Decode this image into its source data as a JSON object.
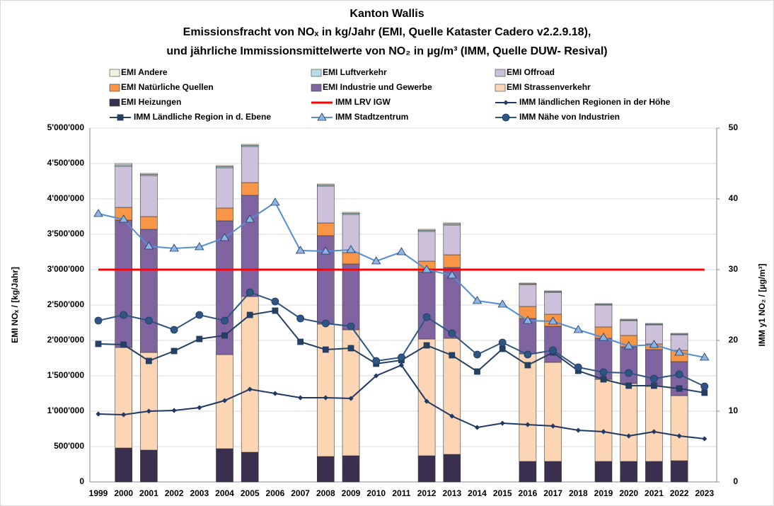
{
  "chart_data": {
    "type": "combo",
    "title": [
      "Kanton Wallis",
      "Emissionsfracht von NOₓ in kg/Jahr (EMI, Quelle Kataster Cadero v2.2.9.18),",
      "und jährliche Immissionsmittelwerte von NO₂ in µg/m³ (IMM, Quelle DUW- Resival)"
    ],
    "y_label": "EMI NOₓ / [kg/Jahr]",
    "y2_label": "IMM y1 NO₂ / [µg/m³]",
    "categories": [
      "1999",
      "2000",
      "2001",
      "2002",
      "2003",
      "2004",
      "2005",
      "2006",
      "2007",
      "2008",
      "2009",
      "2010",
      "2011",
      "2012",
      "2013",
      "2014",
      "2015",
      "2016",
      "2017",
      "2018",
      "2019",
      "2020",
      "2021",
      "2022",
      "2023"
    ],
    "ylim": [
      0,
      5000000
    ],
    "yticks": [
      0,
      {
        "value": 500000,
        "label": "500'000"
      },
      {
        "value": 1000000,
        "label": "1'000'000"
      },
      {
        "value": 1500000,
        "label": "1'500'000"
      },
      {
        "value": 2000000,
        "label": "2'000'000"
      },
      {
        "value": 2500000,
        "label": "2'500'000"
      },
      {
        "value": 3000000,
        "label": "3'000'000"
      },
      {
        "value": 3500000,
        "label": "3'500'000"
      },
      {
        "value": 4000000,
        "label": "4'000'000"
      },
      {
        "value": 4500000,
        "label": "4'500'000"
      },
      {
        "value": 5000000,
        "label": "5'000'000"
      }
    ],
    "y2lim": [
      0,
      50
    ],
    "y2ticks": [
      0,
      10,
      20,
      30,
      40,
      50
    ],
    "grid": true,
    "series": [
      {
        "name": "EMI Andere",
        "kind": "bar",
        "color": "#f4f1de",
        "values": [
          null,
          20000,
          15000,
          null,
          null,
          15000,
          15000,
          null,
          null,
          15000,
          15000,
          null,
          null,
          15000,
          15000,
          null,
          null,
          10000,
          10000,
          null,
          10000,
          10000,
          10000,
          10000,
          null
        ]
      },
      {
        "name": "EMI Luftverkehr",
        "kind": "bar",
        "color": "#b7dee8",
        "values": [
          null,
          20000,
          15000,
          null,
          null,
          15000,
          15000,
          null,
          null,
          15000,
          15000,
          null,
          null,
          15000,
          15000,
          null,
          null,
          10000,
          10000,
          null,
          10000,
          10000,
          10000,
          10000,
          null
        ]
      },
      {
        "name": "EMI Offroad",
        "kind": "bar",
        "color": "#ccc0da",
        "values": [
          null,
          580000,
          580000,
          null,
          null,
          570000,
          510000,
          null,
          null,
          520000,
          540000,
          null,
          null,
          420000,
          420000,
          null,
          null,
          310000,
          310000,
          null,
          310000,
          210000,
          270000,
          220000,
          null
        ]
      },
      {
        "name": "EMI Natürliche Quellen",
        "kind": "bar",
        "color": "#f79646",
        "values": [
          null,
          180000,
          180000,
          null,
          null,
          180000,
          180000,
          null,
          null,
          180000,
          160000,
          null,
          null,
          150000,
          180000,
          null,
          null,
          170000,
          170000,
          null,
          160000,
          160000,
          80000,
          160000,
          null
        ]
      },
      {
        "name": "EMI Industrie und Gewerbe",
        "kind": "bar",
        "color": "#8064a2",
        "values": [
          null,
          1800000,
          1740000,
          null,
          null,
          1890000,
          1430000,
          null,
          null,
          1250000,
          930000,
          null,
          null,
          950000,
          1000000,
          null,
          null,
          500000,
          510000,
          null,
          580000,
          520000,
          520000,
          480000,
          null
        ]
      },
      {
        "name": "EMI Strassenverkehr",
        "kind": "bar",
        "color": "#fcd5b4",
        "values": [
          null,
          1420000,
          1380000,
          null,
          null,
          1330000,
          2200000,
          null,
          null,
          1870000,
          1780000,
          null,
          null,
          1650000,
          1640000,
          null,
          null,
          1520000,
          1400000,
          null,
          1160000,
          1100000,
          1060000,
          920000,
          null
        ]
      },
      {
        "name": "EMI Heizungen",
        "kind": "bar",
        "color": "#3b2f4f",
        "values": [
          null,
          480000,
          450000,
          null,
          null,
          470000,
          420000,
          null,
          null,
          360000,
          370000,
          null,
          null,
          370000,
          390000,
          null,
          null,
          290000,
          290000,
          null,
          290000,
          290000,
          290000,
          300000,
          null
        ]
      },
      {
        "name": "IMM LRV IGW",
        "kind": "line",
        "axis": "y2",
        "marker": "none",
        "color": "#ff0000",
        "values": [
          30,
          30,
          30,
          30,
          30,
          30,
          30,
          30,
          30,
          30,
          30,
          30,
          30,
          30,
          30,
          30,
          30,
          30,
          30,
          30,
          30,
          30,
          30,
          30,
          30
        ]
      },
      {
        "name": "IMM ländlichen Regionen in der Höhe",
        "kind": "line",
        "axis": "y2",
        "marker": "diamond",
        "color": "#1f3864",
        "values": [
          9.6,
          9.5,
          10.0,
          10.1,
          10.5,
          11.5,
          13.1,
          12.5,
          11.9,
          11.9,
          11.8,
          15.0,
          16.5,
          11.4,
          9.3,
          7.7,
          8.3,
          8.1,
          7.9,
          7.3,
          7.1,
          6.5,
          7.1,
          6.5,
          6.1
        ]
      },
      {
        "name": "IMM Ländliche Region in d. Ebene",
        "kind": "line",
        "axis": "y2",
        "marker": "square",
        "color": "#254061",
        "values": [
          19.5,
          19.4,
          17.1,
          18.5,
          20.2,
          20.7,
          23.6,
          24.2,
          19.8,
          18.7,
          18.9,
          16.7,
          17.2,
          19.3,
          17.9,
          15.6,
          18.8,
          16.5,
          18.3,
          15.7,
          14.5,
          13.6,
          13.6,
          13.2,
          12.6
        ]
      },
      {
        "name": "IMM Stadtzentrum",
        "kind": "line",
        "axis": "y2",
        "marker": "triangle",
        "color": "#558ed5",
        "values": [
          37.9,
          37.1,
          33.3,
          33.0,
          33.2,
          34.5,
          37.1,
          39.5,
          32.7,
          32.6,
          32.8,
          31.2,
          32.5,
          30.0,
          29.2,
          25.6,
          25.1,
          22.8,
          22.7,
          21.5,
          20.4,
          19.2,
          19.4,
          18.3,
          17.6
        ]
      },
      {
        "name": "IMM Nähe von Industrien",
        "kind": "line",
        "axis": "y2",
        "marker": "circle",
        "color": "#2f5582",
        "values": [
          22.8,
          23.6,
          22.8,
          21.5,
          23.6,
          22.8,
          26.8,
          25.5,
          23.1,
          22.4,
          22.0,
          17.1,
          17.6,
          23.3,
          21.0,
          18.0,
          19.7,
          18.0,
          18.6,
          16.2,
          15.5,
          15.4,
          14.6,
          15.2,
          13.5
        ]
      }
    ]
  }
}
